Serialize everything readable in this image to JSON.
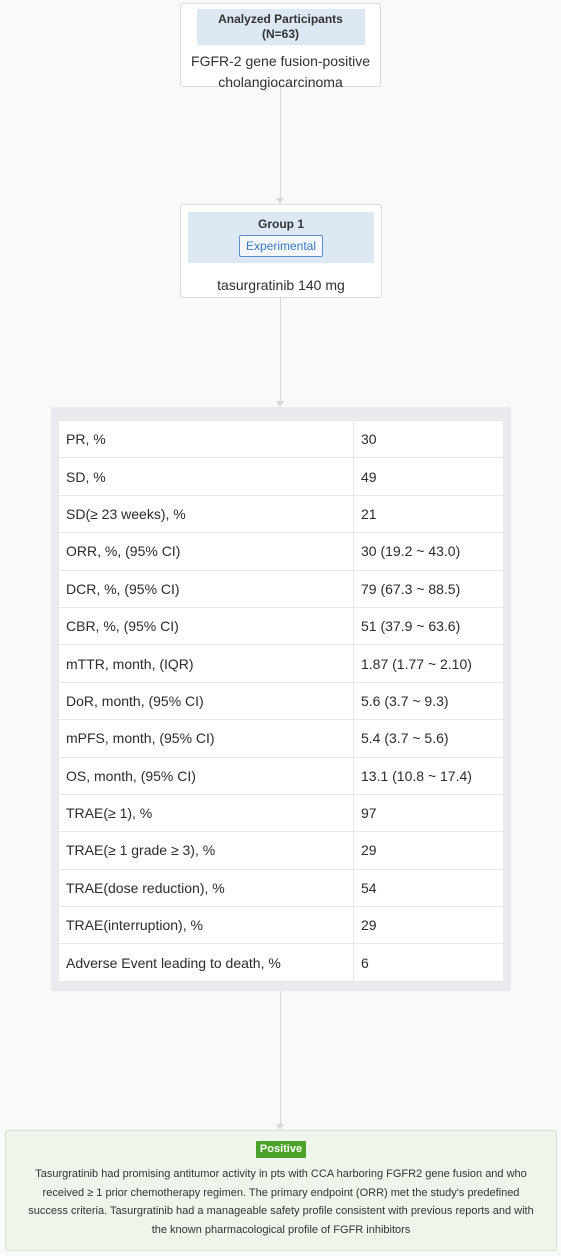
{
  "participants": {
    "title": "Analyzed Participants (N=63)",
    "description": "FGFR-2 gene fusion-positive cholangiocarcinoma"
  },
  "group": {
    "title": "Group 1",
    "tag": "Experimental",
    "arm": "tasurgratinib 140 mg"
  },
  "results": [
    {
      "label": "PR, %",
      "value": "30"
    },
    {
      "label": "SD, %",
      "value": "49"
    },
    {
      "label": "SD(≥ 23 weeks), %",
      "value": "21"
    },
    {
      "label": "ORR, %, (95% CI)",
      "value": "30 (19.2 ~ 43.0)"
    },
    {
      "label": "DCR, %, (95% CI)",
      "value": "79 (67.3 ~ 88.5)"
    },
    {
      "label": "CBR, %, (95% CI)",
      "value": "51 (37.9 ~ 63.6)"
    },
    {
      "label": "mTTR, month, (IQR)",
      "value": "1.87 (1.77 ~ 2.10)"
    },
    {
      "label": "DoR, month, (95% CI)",
      "value": "5.6 (3.7 ~ 9.3)"
    },
    {
      "label": "mPFS, month, (95% CI)",
      "value": "5.4 (3.7 ~ 5.6)"
    },
    {
      "label": "OS, month, (95% CI)",
      "value": "13.1 (10.8 ~ 17.4)"
    },
    {
      "label": "TRAE(≥ 1), %",
      "value": "97"
    },
    {
      "label": "TRAE(≥ 1 grade ≥ 3), %",
      "value": "29"
    },
    {
      "label": "TRAE(dose reduction), %",
      "value": "54"
    },
    {
      "label": "TRAE(interruption), %",
      "value": "29"
    },
    {
      "label": "Adverse Event leading to death, %",
      "value": "6"
    }
  ],
  "conclusion": {
    "badge": "Positive",
    "text": "Tasurgratinib had promising antitumor activity in pts with CCA harboring FGFR2 gene fusion and who received ≥ 1 prior chemotherapy regimen. The primary endpoint (ORR) met the study's predefined success criteria. Tasurgratinib had a manageable safety profile consistent with previous reports and with the known pharmacological profile of FGFR inhibitors"
  },
  "colors": {
    "header_fill": "#dde8f5",
    "tag_border": "#5b8fd0",
    "positive_badge": "#4aa22a",
    "conclusion_fill": "#eef6ec"
  }
}
